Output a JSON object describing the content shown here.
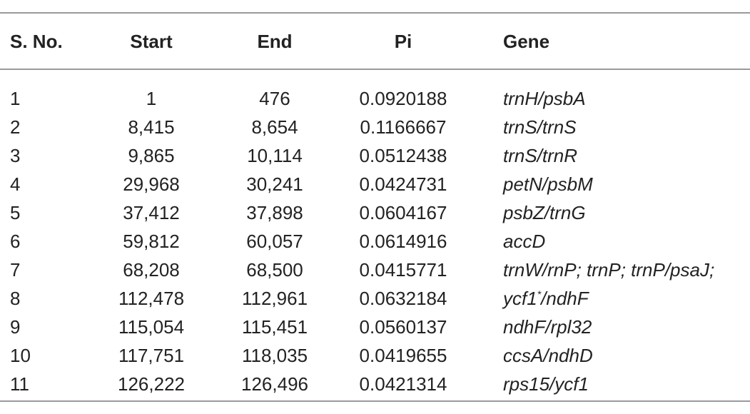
{
  "table": {
    "header": [
      "S. No.",
      "Start",
      "End",
      "Pi",
      "Gene"
    ],
    "rows": [
      [
        "1",
        "1",
        "476",
        "0.0920188",
        "trnH/psbA"
      ],
      [
        "2",
        "8,415",
        "8,654",
        "0.1166667",
        "trnS/trnS"
      ],
      [
        "3",
        "9,865",
        "10,114",
        "0.0512438",
        "trnS/trnR"
      ],
      [
        "4",
        "29,968",
        "30,241",
        "0.0424731",
        "petN/psbM"
      ],
      [
        "5",
        "37,412",
        "37,898",
        "0.0604167",
        "psbZ/trnG"
      ],
      [
        "6",
        "59,812",
        "60,057",
        "0.0614916",
        "accD"
      ],
      [
        "7",
        "68,208",
        "68,500",
        "0.0415771",
        "trnW/rnP; trnP; trnP/psaJ;"
      ],
      [
        "8",
        "112,478",
        "112,961",
        "0.0632184",
        "ycf1*/ndhF"
      ],
      [
        "9",
        "115,054",
        "115,451",
        "0.0560137",
        "ndhF/rpl32"
      ],
      [
        "10",
        "117,751",
        "118,035",
        "0.0419655",
        "ccsA/ndhD"
      ],
      [
        "11",
        "126,222",
        "126,496",
        "0.0421314",
        "rps15/ycf1"
      ]
    ]
  }
}
